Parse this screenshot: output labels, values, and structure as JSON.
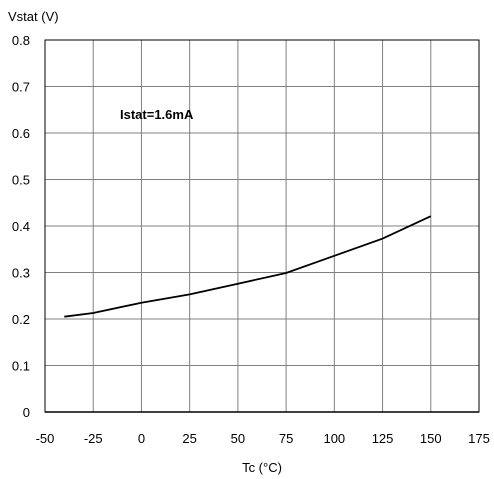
{
  "chart_data": {
    "type": "line",
    "ylabel": "Vstat (V)",
    "xlabel": "Tc (°C)",
    "annotation": "Istat=1.6mA",
    "xlim": [
      -50,
      175
    ],
    "ylim": [
      0,
      0.8
    ],
    "x_ticks": [
      "-50",
      "-25",
      "0",
      "25",
      "50",
      "75",
      "100",
      "125",
      "150",
      "175"
    ],
    "y_ticks": [
      "0",
      "0.1",
      "0.2",
      "0.3",
      "0.4",
      "0.5",
      "0.6",
      "0.7",
      "0.8"
    ],
    "grid": true,
    "series": [
      {
        "x": [
          -40,
          -25,
          0,
          25,
          50,
          75,
          100,
          125,
          150
        ],
        "y": [
          0.205,
          0.213,
          0.235,
          0.253,
          0.276,
          0.299,
          0.336,
          0.373,
          0.421
        ]
      }
    ]
  }
}
